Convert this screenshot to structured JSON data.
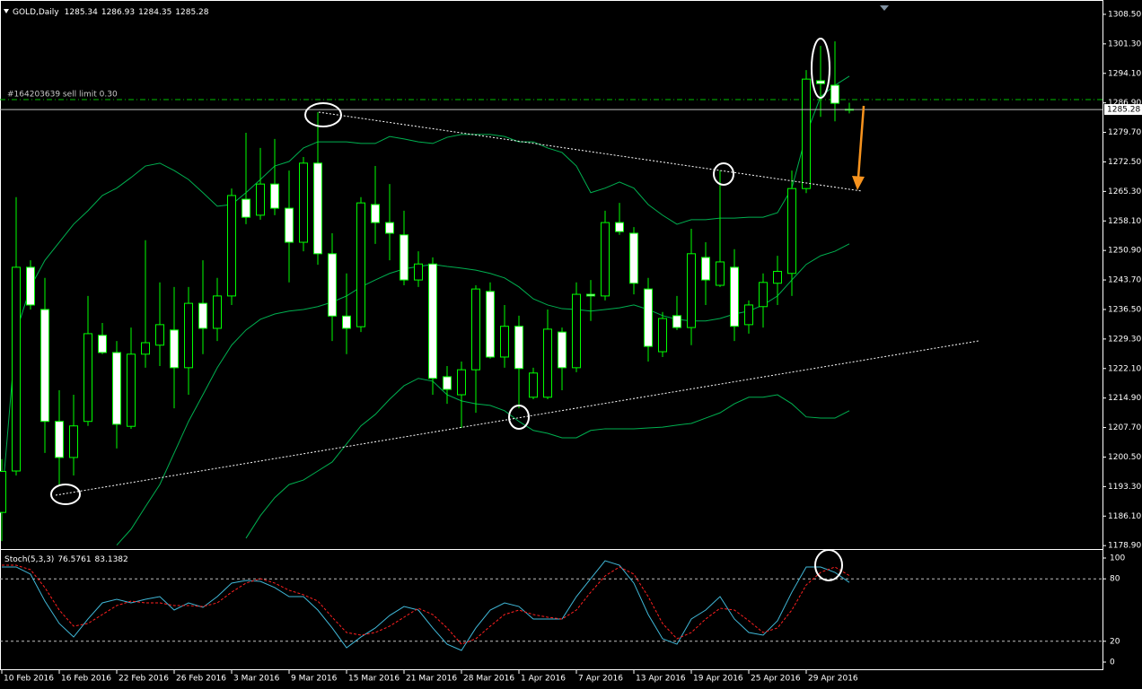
{
  "chart_data": [
    {
      "type": "candlestick",
      "title": "GOLD,Daily",
      "categories": [
        "10 Feb 2016",
        null,
        null,
        null,
        "16 Feb 2016",
        null,
        null,
        null,
        "22 Feb 2016",
        null,
        null,
        null,
        "26 Feb 2016",
        null,
        null,
        null,
        "3 Mar 2016",
        null,
        null,
        null,
        "9 Mar 2016",
        null,
        null,
        null,
        "15 Mar 2016",
        null,
        null,
        null,
        "21 Mar 2016",
        null,
        null,
        null,
        "28 Mar 2016",
        null,
        null,
        null,
        "1 Apr 2016",
        null,
        null,
        null,
        "7 Apr 2016",
        null,
        null,
        null,
        "13 Apr 2016",
        null,
        null,
        null,
        "19 Apr 2016",
        null,
        null,
        null,
        "25 Apr 2016",
        null,
        null,
        null,
        "29 Apr 2016",
        null,
        null,
        null
      ],
      "open": [
        1187,
        1197.1,
        1246.8,
        1236.5,
        1209.2,
        1200.4,
        1209.2,
        1230.2,
        1226.0,
        1208.0,
        1225.6,
        1227.8,
        1231.5,
        1222.3,
        1238.0,
        1231.9,
        1239.8,
        1263.4,
        1259.5,
        1267.1,
        1261.2,
        1252.9,
        1272.2,
        1250.1,
        1234.9,
        1232.3,
        1262.1,
        1257.7,
        1254.7,
        1243.7,
        1247.6,
        1220.1,
        1215.7,
        1221.8,
        1240.9,
        1224.9,
        1232.4,
        1215.1,
        1215.1,
        1231.0,
        1222.3,
        1240.2,
        1239.8,
        1257.7,
        1255.1,
        1241.5,
        1226.2,
        1235.0,
        1232.1,
        1249.2,
        1242.4,
        1246.8,
        1232.8,
        1237.2,
        1242.9,
        1245.3,
        1266.0,
        1292.3,
        1291.2,
        1285.34
      ],
      "high": [
        1200,
        1263.9,
        1248.5,
        1244.2,
        1216.8,
        1215.7,
        1239.8,
        1233.2,
        1228.8,
        1232.1,
        1253.4,
        1243.1,
        1242.0,
        1242.0,
        1248.5,
        1244.2,
        1266.0,
        1279.6,
        1275.9,
        1278.1,
        1270.4,
        1273.7,
        1284.6,
        1255.1,
        1245.3,
        1263.9,
        1271.5,
        1267.1,
        1260.6,
        1250.7,
        1249.2,
        1222.7,
        1223.8,
        1242.4,
        1243.1,
        1237.6,
        1235.0,
        1222.3,
        1236.5,
        1232.1,
        1243.1,
        1243.7,
        1260.6,
        1262.5,
        1256.6,
        1244.2,
        1235.9,
        1239.8,
        1256.2,
        1252.9,
        1270.4,
        1251.2,
        1238.7,
        1245.3,
        1249.6,
        1270.4,
        1294.9,
        1300.8,
        1301.9,
        1286.93
      ],
      "low": [
        1180,
        1196.0,
        1236.5,
        1201.5,
        1193.8,
        1196.0,
        1208.1,
        1225.6,
        1202.6,
        1207.4,
        1222.3,
        1222.7,
        1212.4,
        1215.7,
        1225.6,
        1228.8,
        1237.6,
        1257.3,
        1258.4,
        1259.5,
        1243.1,
        1250.7,
        1247.4,
        1228.8,
        1225.6,
        1231.0,
        1252.5,
        1248.5,
        1242.4,
        1242.0,
        1215.7,
        1213.5,
        1207.6,
        1211.3,
        1224.5,
        1222.3,
        1212.4,
        1214.6,
        1214.6,
        1216.8,
        1221.2,
        1233.7,
        1238.7,
        1254.7,
        1240.2,
        1223.8,
        1224.9,
        1231.5,
        1227.8,
        1237.6,
        1242.0,
        1228.8,
        1230.6,
        1232.1,
        1237.6,
        1239.8,
        1264.9,
        1283.5,
        1282.4,
        1284.35
      ],
      "close": [
        1197,
        1246.8,
        1237.6,
        1209.2,
        1200.4,
        1208.1,
        1230.6,
        1226.0,
        1208.5,
        1225.6,
        1228.4,
        1232.8,
        1222.3,
        1238.0,
        1231.9,
        1239.8,
        1264.3,
        1259.0,
        1267.1,
        1261.2,
        1252.9,
        1272.2,
        1250.1,
        1234.9,
        1231.9,
        1262.5,
        1257.7,
        1255.1,
        1243.7,
        1247.6,
        1219.7,
        1217.0,
        1221.8,
        1241.5,
        1224.9,
        1232.4,
        1222.1,
        1221.0,
        1231.7,
        1222.3,
        1240.2,
        1239.8,
        1257.7,
        1255.5,
        1242.9,
        1227.5,
        1234.3,
        1232.1,
        1250.1,
        1243.7,
        1248.1,
        1232.4,
        1237.6,
        1243.1,
        1245.8,
        1266.0,
        1292.7,
        1291.6,
        1286.8,
        1285.28
      ],
      "up_color": "#000000",
      "down_color": "#ffffff",
      "wick_color": "#00ff00",
      "bands": [
        {
          "color": "#00b050",
          "values": [
            1189.5,
            1231.0,
            1242.0,
            1248.5,
            1252.9,
            1257.3,
            1260.6,
            1264.3,
            1266.1,
            1268.7,
            1271.5,
            1272.2,
            1270.4,
            1268.2,
            1265.0,
            1261.7,
            1262.1,
            1265.0,
            1268.2,
            1271.5,
            1272.6,
            1275.9,
            1277.4,
            1277.4,
            1277.4,
            1277.0,
            1277.0,
            1278.7,
            1278.1,
            1277.4,
            1277.0,
            1278.5,
            1279.2,
            1279.2,
            1279.2,
            1278.7,
            1277.4,
            1277.4,
            1275.9,
            1274.8,
            1271.5,
            1265.0,
            1266.1,
            1267.6,
            1266.1,
            1262.1,
            1259.5,
            1257.3,
            1258.4,
            1258.4,
            1258.8,
            1258.8,
            1259.0,
            1259.0,
            1260.1,
            1266.1,
            1279.2,
            1288.4,
            1291.2,
            1293.4
          ]
        },
        {
          "color": "#00b050",
          "values": [
            null,
            null,
            null,
            null,
            null,
            null,
            null,
            null,
            1179.0,
            1182.9,
            1188.4,
            1193.8,
            1201.5,
            1209.2,
            1215.7,
            1222.3,
            1227.8,
            1231.5,
            1234.1,
            1235.4,
            1236.1,
            1236.5,
            1237.2,
            1238.3,
            1239.8,
            1242.0,
            1243.7,
            1245.3,
            1246.4,
            1247.0,
            1247.5,
            1247.0,
            1246.6,
            1246.1,
            1245.3,
            1244.2,
            1242.0,
            1239.1,
            1237.6,
            1236.7,
            1236.5,
            1236.1,
            1236.5,
            1236.9,
            1237.6,
            1236.5,
            1235.0,
            1234.1,
            1233.7,
            1233.7,
            1234.3,
            1235.4,
            1236.1,
            1237.6,
            1239.8,
            1243.7,
            1247.5,
            1249.6,
            1250.7,
            1252.5
          ]
        },
        {
          "color": "#00b050",
          "values": [
            null,
            null,
            null,
            null,
            null,
            null,
            null,
            null,
            null,
            null,
            null,
            null,
            null,
            null,
            null,
            null,
            null,
            1180.7,
            1186.2,
            1190.6,
            1193.8,
            1194.9,
            1197.1,
            1199.3,
            1203.7,
            1208.1,
            1210.9,
            1214.6,
            1217.9,
            1219.7,
            1219.0,
            1215.7,
            1214.2,
            1213.5,
            1213.1,
            1211.8,
            1209.2,
            1207.0,
            1206.3,
            1205.2,
            1205.2,
            1207.0,
            1207.4,
            1207.4,
            1207.4,
            1207.6,
            1207.8,
            1208.3,
            1208.7,
            1210.0,
            1211.3,
            1213.5,
            1215.1,
            1215.1,
            1215.7,
            1213.5,
            1210.3,
            1210.0,
            1210.0,
            1211.8
          ]
        }
      ],
      "order_label": "#164203639 sell limit 0.30",
      "order_price": 1287.7,
      "order_color": "#00c000",
      "ylim": [
        1178.5,
        1310.9
      ],
      "yticks": [
        {
          "value": 1308.5,
          "label": "1308.50"
        },
        {
          "value": 1301.3,
          "label": "1301.30"
        },
        {
          "value": 1294.1,
          "label": "1294.10"
        },
        {
          "value": 1286.9,
          "label": "1286.90"
        },
        {
          "value": 1279.7,
          "label": "1279.70"
        },
        {
          "value": 1272.5,
          "label": "1272.50"
        },
        {
          "value": 1265.3,
          "label": "1265.30"
        },
        {
          "value": 1258.1,
          "label": "1258.10"
        },
        {
          "value": 1250.9,
          "label": "1250.90"
        },
        {
          "value": 1243.7,
          "label": "1243.70"
        },
        {
          "value": 1236.5,
          "label": "1236.50"
        },
        {
          "value": 1229.3,
          "label": "1229.30"
        },
        {
          "value": 1222.1,
          "label": "1222.10"
        },
        {
          "value": 1214.9,
          "label": "1214.90"
        },
        {
          "value": 1207.7,
          "label": "1207.70"
        },
        {
          "value": 1200.5,
          "label": "1200.50"
        },
        {
          "value": 1193.3,
          "label": "1193.30"
        },
        {
          "value": 1186.1,
          "label": "1186.10"
        },
        {
          "value": 1178.9,
          "label": "1178.90"
        }
      ],
      "grid": false
    },
    {
      "type": "line",
      "title": "Stoch(5,3,3)",
      "series": [
        {
          "color": "#40b8d8",
          "dash": false,
          "values": [
            91.4,
            91.4,
            84.5,
            58.6,
            37.1,
            24.1,
            41.4,
            56.9,
            60.3,
            56.9,
            60.3,
            62.9,
            50.0,
            56.9,
            52.6,
            62.9,
            75.9,
            78.4,
            77.6,
            71.6,
            62.9,
            62.9,
            50.0,
            32.8,
            13.8,
            24.1,
            32.8,
            44.8,
            53.4,
            50.0,
            32.8,
            17.2,
            11.2,
            32.8,
            50.0,
            56.9,
            53.4,
            41.4,
            41.4,
            41.4,
            62.9,
            80.2,
            97.4,
            93.1,
            75.9,
            45.7,
            22.4,
            17.2,
            41.4,
            50.0,
            62.9,
            41.4,
            28.4,
            25.9,
            39.7,
            67.2,
            91.4,
            91.4,
            86.2,
            76.5761
          ]
        },
        {
          "color": "#ff2020",
          "dash": true,
          "values": [
            93.1,
            93.1,
            88.8,
            71.6,
            50.0,
            34.5,
            37.1,
            45.7,
            54.3,
            58.6,
            56.9,
            56.9,
            54.3,
            54.3,
            53.4,
            56.9,
            67.2,
            75.9,
            80.2,
            75.9,
            69.0,
            64.7,
            58.6,
            43.1,
            28.4,
            25.9,
            28.4,
            34.5,
            43.1,
            51.7,
            45.7,
            32.8,
            17.2,
            22.4,
            34.5,
            45.7,
            50.0,
            45.7,
            43.1,
            41.4,
            50.0,
            67.2,
            82.8,
            91.4,
            84.5,
            62.9,
            37.1,
            22.4,
            28.4,
            41.4,
            51.7,
            50.0,
            39.7,
            28.4,
            32.8,
            50.0,
            74.1,
            86.2,
            91.4,
            83.1382
          ]
        }
      ],
      "levels": [
        20,
        80
      ],
      "ylim": [
        -6.9,
        106.9
      ],
      "yticks": [
        0,
        20,
        80,
        100
      ],
      "grid": false
    }
  ]
}
